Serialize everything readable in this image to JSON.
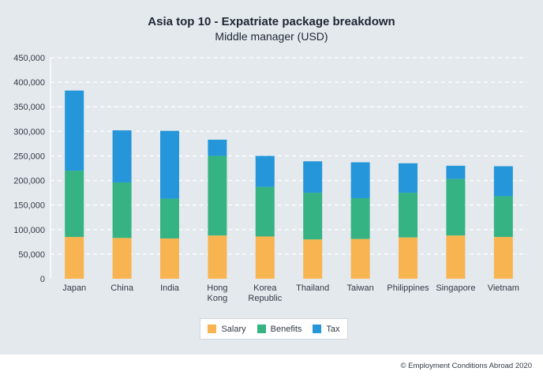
{
  "chart_data": {
    "type": "bar",
    "stacked": true,
    "title": "Asia top 10 - Expatriate package breakdown",
    "subtitle": "Middle manager (USD)",
    "categories": [
      "Japan",
      "China",
      "India",
      "Hong Kong",
      "Korea Republic",
      "Thailand",
      "Taiwan",
      "Philippines",
      "Singapore",
      "Vietnam"
    ],
    "category_lines": [
      [
        "Japan"
      ],
      [
        "China"
      ],
      [
        "India"
      ],
      [
        "Hong",
        "Kong"
      ],
      [
        "Korea",
        "Republic"
      ],
      [
        "Thailand"
      ],
      [
        "Taiwan"
      ],
      [
        "Philippines"
      ],
      [
        "Singapore"
      ],
      [
        "Vietnam"
      ]
    ],
    "series": [
      {
        "name": "Salary",
        "color": "#f8b450",
        "values": [
          85000,
          83000,
          82000,
          88000,
          86000,
          80000,
          81000,
          84000,
          88000,
          85000
        ]
      },
      {
        "name": "Benefits",
        "color": "#35b383",
        "values": [
          135000,
          113000,
          81000,
          162000,
          101000,
          95000,
          83000,
          91000,
          115000,
          83000
        ]
      },
      {
        "name": "Tax",
        "color": "#2596d9",
        "values": [
          163000,
          106000,
          138000,
          33000,
          63000,
          64000,
          73000,
          60000,
          27000,
          61000
        ]
      }
    ],
    "ylim": [
      0,
      450000
    ],
    "yticks": [
      0,
      50000,
      100000,
      150000,
      200000,
      250000,
      300000,
      350000,
      400000,
      450000
    ],
    "ytick_labels": [
      "0",
      "50,000",
      "100,000",
      "150,000",
      "200,000",
      "250,000",
      "300,000",
      "350,000",
      "400,000",
      "450,000"
    ],
    "grid": "dashed horizontal",
    "legend_position": "bottom"
  },
  "footer": "© Employment Conditions Abroad 2020"
}
